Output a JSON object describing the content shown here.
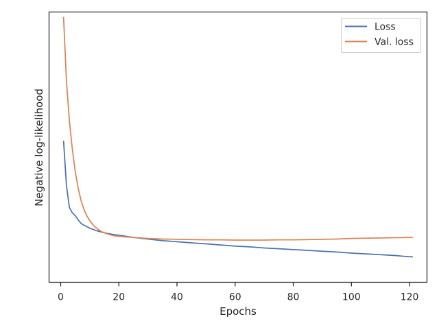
{
  "chart_data": {
    "type": "line",
    "title": "",
    "xlabel": "Epochs",
    "ylabel": "Negative log-likelihood",
    "xlim": [
      -4,
      126
    ],
    "ylim": [
      0.0,
      1.0
    ],
    "x_ticks": [
      0,
      20,
      40,
      60,
      80,
      100,
      120
    ],
    "y_ticks_visible": false,
    "grid": false,
    "legend_position": "top-right",
    "series": [
      {
        "name": "Loss",
        "color": "#4c72b0",
        "x": [
          1,
          2,
          3,
          4,
          5,
          6,
          7,
          8,
          9,
          10,
          12,
          14,
          16,
          18,
          20,
          22,
          25,
          30,
          35,
          40,
          45,
          50,
          55,
          60,
          65,
          70,
          75,
          80,
          85,
          90,
          95,
          100,
          105,
          110,
          115,
          118,
          121
        ],
        "y": [
          0.522,
          0.356,
          0.277,
          0.257,
          0.247,
          0.231,
          0.218,
          0.211,
          0.206,
          0.2,
          0.192,
          0.186,
          0.181,
          0.177,
          0.174,
          0.171,
          0.166,
          0.16,
          0.154,
          0.15,
          0.146,
          0.142,
          0.138,
          0.134,
          0.131,
          0.127,
          0.124,
          0.121,
          0.118,
          0.115,
          0.112,
          0.108,
          0.105,
          0.102,
          0.099,
          0.096,
          0.094
        ]
      },
      {
        "name": "Val. loss",
        "color": "#dd8452",
        "x": [
          1,
          2,
          3,
          4,
          5,
          6,
          7,
          8,
          9,
          10,
          11,
          12,
          13,
          14,
          15,
          16,
          17,
          18,
          19,
          20,
          22,
          25,
          30,
          35,
          40,
          45,
          50,
          55,
          60,
          65,
          70,
          75,
          80,
          85,
          90,
          95,
          100,
          105,
          110,
          115,
          121
        ],
        "y": [
          0.98,
          0.742,
          0.598,
          0.493,
          0.411,
          0.349,
          0.303,
          0.27,
          0.246,
          0.228,
          0.214,
          0.203,
          0.195,
          0.188,
          0.183,
          0.179,
          0.176,
          0.173,
          0.171,
          0.17,
          0.168,
          0.166,
          0.162,
          0.16,
          0.159,
          0.158,
          0.157,
          0.157,
          0.156,
          0.156,
          0.156,
          0.157,
          0.157,
          0.158,
          0.159,
          0.16,
          0.162,
          0.163,
          0.164,
          0.165,
          0.166
        ]
      }
    ]
  }
}
